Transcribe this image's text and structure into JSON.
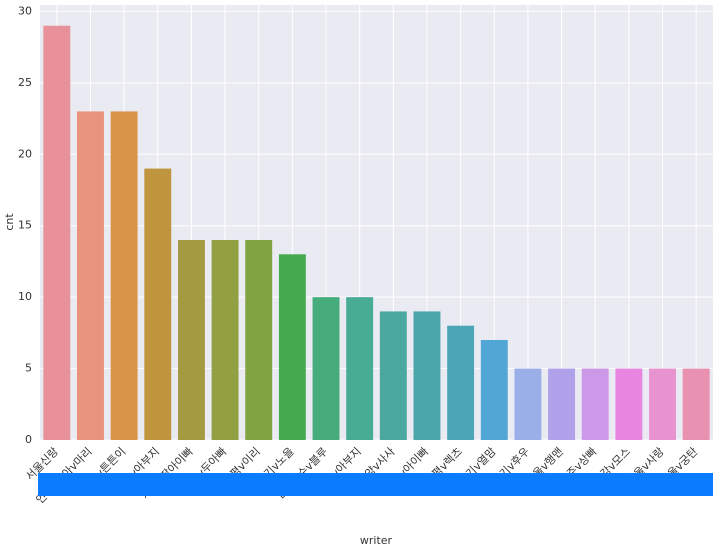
{
  "chart_data": {
    "type": "bar",
    "x_label": "writer",
    "y_label": "cnt",
    "categories": [
      "서울신랑",
      "인천v수아v마리",
      "서울v튼튼이",
      "서울v아부지",
      "서울v딸아이빠",
      "서울v두아빠",
      "은평v이리",
      "경기v노을",
      "인천연수v블루",
      "인천v아부지",
      "광양v사사",
      "광양v아이빠",
      "은평v렉츠",
      "경기v열맘",
      "경기v후우",
      "서울v행맨",
      "천주v상빠",
      "서울강v모스",
      "서울v사랑",
      "서울v궁탄"
    ],
    "values": [
      29,
      23,
      23,
      19,
      14,
      14,
      14,
      13,
      10,
      10,
      9,
      9,
      8,
      7,
      5,
      5,
      5,
      5,
      5,
      5
    ],
    "colors": [
      "#e8919a",
      "#e8937b",
      "#d99448",
      "#bf953d",
      "#a39a41",
      "#92a042",
      "#81a341",
      "#45ab4f",
      "#47ac7c",
      "#48ab94",
      "#4aa8a0",
      "#4aa6ab",
      "#4ca6b8",
      "#51a6d6",
      "#9aaee8",
      "#b0a2ea",
      "#cc99e8",
      "#e886e2",
      "#e893d0",
      "#e891b0"
    ],
    "ylim": [
      0,
      30.45
    ],
    "yticks": [
      0,
      5,
      10,
      15,
      20,
      25,
      30
    ],
    "grid": true
  }
}
